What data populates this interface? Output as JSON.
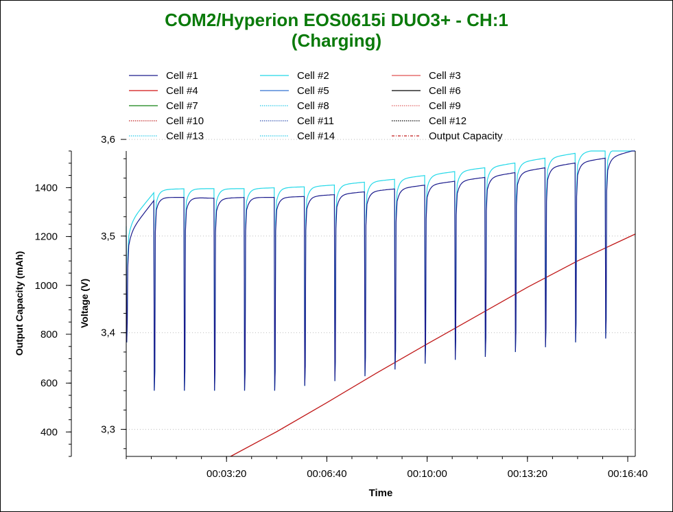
{
  "chart_data": {
    "type": "line",
    "title": "COM2/Hyperion EOS0615i DUO3+ - CH:1",
    "subtitle": "(Charging)",
    "title_color": "#0a7a0a",
    "xlabel": "Time",
    "x_unit": "seconds",
    "xlim": [
      0,
      1015
    ],
    "x_ticks": [
      200,
      400,
      600,
      800,
      1000
    ],
    "x_tick_labels": [
      "00:03:20",
      "00:06:40",
      "00:10:00",
      "00:13:20",
      "00:16:40"
    ],
    "y_left": {
      "label": "Output Capacity (mAh)",
      "range": [
        300,
        1550
      ],
      "ticks": [
        400,
        600,
        800,
        1000,
        1200,
        1400
      ],
      "tick_labels": [
        "400",
        "600",
        "800",
        "1000",
        "1200",
        "1400"
      ]
    },
    "y_right": {
      "label": "Voltage (V)",
      "range": [
        3.272,
        3.588
      ],
      "ticks": [
        3.3,
        3.4,
        3.5,
        3.6
      ],
      "tick_labels": [
        "3,3",
        "3,4",
        "3,5",
        "3,6"
      ]
    },
    "grid": "dotted horizontal at voltage ticks",
    "legend_position": "top",
    "legend": [
      {
        "label": "Cell #1",
        "color": "#1a1a8c",
        "style": "solid"
      },
      {
        "label": "Cell #2",
        "color": "#22d8e8",
        "style": "solid"
      },
      {
        "label": "Cell #3",
        "color": "#e05050",
        "style": "solid"
      },
      {
        "label": "Cell #4",
        "color": "#d01010",
        "style": "solid"
      },
      {
        "label": "Cell #5",
        "color": "#3070d0",
        "style": "solid"
      },
      {
        "label": "Cell #6",
        "color": "#000000",
        "style": "solid"
      },
      {
        "label": "Cell #7",
        "color": "#108010",
        "style": "solid"
      },
      {
        "label": "Cell #8",
        "color": "#22c8e8",
        "style": "dotted"
      },
      {
        "label": "Cell #9",
        "color": "#e06060",
        "style": "dotted"
      },
      {
        "label": "Cell #10",
        "color": "#c02020",
        "style": "dotted"
      },
      {
        "label": "Cell #11",
        "color": "#3050b0",
        "style": "dotted"
      },
      {
        "label": "Cell #12",
        "color": "#000000",
        "style": "dotted"
      },
      {
        "label": "Cell #13",
        "color": "#22c8e8",
        "style": "dotted"
      },
      {
        "label": "Cell #14",
        "color": "#22c8e8",
        "style": "dotted"
      },
      {
        "label": "Output Capacity",
        "color": "#c01818",
        "style": "dashdot"
      }
    ],
    "series": [
      {
        "name": "Output Capacity",
        "axis": "left",
        "color": "#c01818",
        "x": [
          0,
          208,
          300,
          400,
          500,
          600,
          700,
          800,
          900,
          1015
        ],
        "y": [
          0,
          300,
          401,
          520,
          642,
          760,
          876,
          992,
          1100,
          1210
        ]
      },
      {
        "name": "Cell #1",
        "axis": "right",
        "color": "#1a1a8c",
        "pulse_period": 60,
        "dip_at": [
          0,
          55,
          115,
          175,
          235,
          295,
          355,
          415,
          475,
          535,
          595,
          655,
          715,
          775,
          835,
          895,
          955
        ],
        "dip_min": [
          3.39,
          3.34,
          3.34,
          3.34,
          3.34,
          3.34,
          3.345,
          3.35,
          3.355,
          3.362,
          3.368,
          3.372,
          3.375,
          3.38,
          3.385,
          3.39,
          3.394
        ],
        "x": [
          0,
          60,
          120,
          180,
          240,
          300,
          360,
          420,
          480,
          540,
          600,
          660,
          720,
          780,
          840,
          900,
          960,
          1015
        ],
        "y": [
          3.5,
          3.54,
          3.54,
          3.539,
          3.54,
          3.54,
          3.541,
          3.543,
          3.546,
          3.549,
          3.553,
          3.557,
          3.561,
          3.566,
          3.571,
          3.576,
          3.581,
          3.589
        ]
      },
      {
        "name": "Cell #2",
        "axis": "right",
        "color": "#22d8e8",
        "dip_at": [
          0,
          55,
          115,
          175,
          235,
          295,
          355,
          415,
          475,
          535,
          595,
          655,
          715,
          775,
          835,
          895,
          955
        ],
        "dip_min": [
          3.39,
          3.34,
          3.34,
          3.34,
          3.34,
          3.34,
          3.345,
          3.35,
          3.355,
          3.362,
          3.368,
          3.372,
          3.375,
          3.38,
          3.385,
          3.39,
          3.394
        ],
        "x": [
          0,
          60,
          120,
          180,
          240,
          300,
          360,
          420,
          480,
          540,
          600,
          660,
          720,
          780,
          840,
          900,
          960,
          1015
        ],
        "y": [
          3.51,
          3.548,
          3.549,
          3.549,
          3.549,
          3.55,
          3.551,
          3.553,
          3.556,
          3.559,
          3.563,
          3.567,
          3.571,
          3.576,
          3.581,
          3.586,
          3.591,
          3.599
        ]
      }
    ]
  }
}
